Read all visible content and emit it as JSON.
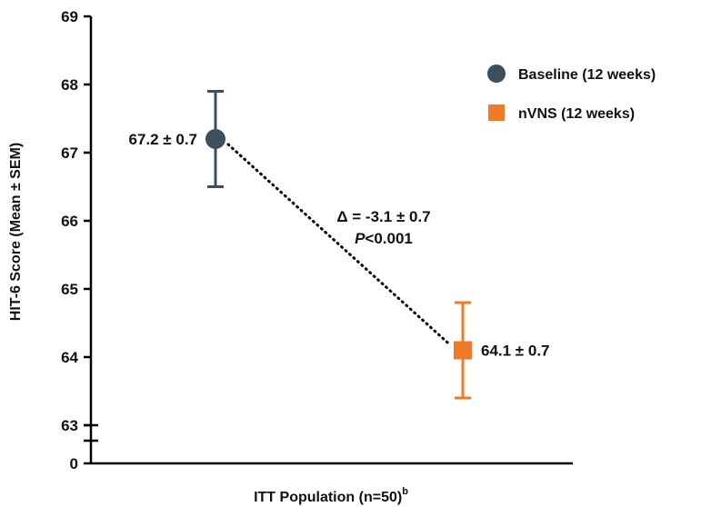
{
  "chart_data": {
    "type": "scatter",
    "title": "",
    "ylabel": "HIT-6 Score (Mean ± SEM)",
    "xlabel": "ITT Population (n=50)",
    "xlabel_sup": "b",
    "ylim": [
      63,
      69
    ],
    "y_break_tick": "0",
    "yticks": [
      63,
      64,
      65,
      66,
      67,
      68,
      69
    ],
    "grid": false,
    "legend_position": "top-right",
    "series": [
      {
        "name": "Baseline (12 weeks)",
        "marker": "circle",
        "color": "#3d4f5c",
        "mean": 67.2,
        "sem": 0.7,
        "label": "67.2 ± 0.7"
      },
      {
        "name": "nVNS (12 weeks)",
        "marker": "square",
        "color": "#f07a2a",
        "mean": 64.1,
        "sem": 0.7,
        "label": "64.1 ± 0.7"
      }
    ],
    "annotations": {
      "delta": "Δ = -3.1 ± 0.7",
      "p_prefix": "P",
      "p_value": "<0.001"
    }
  }
}
